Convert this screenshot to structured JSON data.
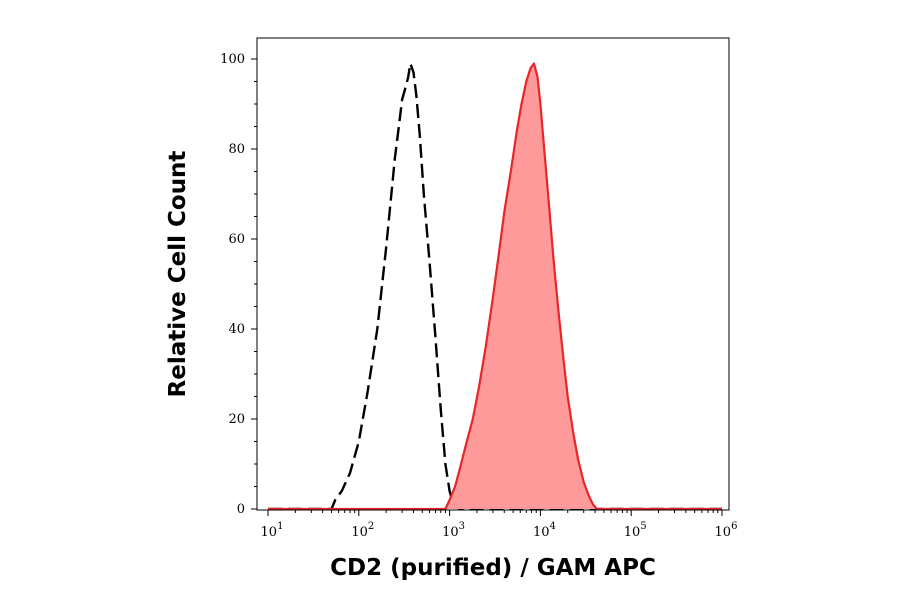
{
  "chart_data": {
    "type": "area",
    "xlabel": "CD2 (purified) / GAM APC",
    "ylabel": "Relative Cell Count",
    "x_scale": "log",
    "xlim": [
      10,
      1000000
    ],
    "ylim": [
      0,
      100
    ],
    "x_ticks": [
      {
        "base": "10",
        "exp": "1",
        "value": 10
      },
      {
        "base": "10",
        "exp": "2",
        "value": 100
      },
      {
        "base": "10",
        "exp": "3",
        "value": 1000
      },
      {
        "base": "10",
        "exp": "4",
        "value": 10000
      },
      {
        "base": "10",
        "exp": "5",
        "value": 100000
      },
      {
        "base": "10",
        "exp": "6",
        "value": 1000000
      }
    ],
    "y_ticks": [
      "0",
      "20",
      "40",
      "60",
      "80",
      "100"
    ],
    "grid": false,
    "series": [
      {
        "style": "dashed-line",
        "color": "#000000",
        "x": [
          10,
          40,
          50,
          55,
          65,
          80,
          100,
          125,
          160,
          200,
          250,
          280,
          300,
          320,
          350,
          370,
          400,
          430,
          470,
          520,
          600,
          700,
          800,
          900,
          1000,
          1100,
          1300,
          1000000
        ],
        "y": [
          0,
          0,
          0,
          2,
          4,
          8,
          15,
          26,
          40,
          58,
          78,
          86,
          91,
          93,
          96,
          99,
          97,
          92,
          83,
          70,
          55,
          38,
          22,
          10,
          4,
          1,
          0,
          0
        ]
      },
      {
        "style": "filled-area",
        "color": "#e8262a",
        "fill": "#ff9a9a",
        "x": [
          10,
          900,
          1000,
          1150,
          1300,
          1500,
          1800,
          2100,
          2500,
          3000,
          3500,
          4000,
          4800,
          5500,
          6200,
          7000,
          7800,
          8500,
          9300,
          10000,
          11000,
          12500,
          14000,
          16000,
          18000,
          20000,
          23000,
          26000,
          30000,
          34000,
          38000,
          42000,
          1000000
        ],
        "y": [
          0,
          0,
          2,
          5,
          9,
          14,
          20,
          27,
          36,
          47,
          57,
          66,
          76,
          84,
          90,
          95,
          98,
          99,
          96,
          90,
          80,
          67,
          55,
          43,
          33,
          25,
          17,
          11,
          6,
          3,
          1,
          0,
          0
        ]
      }
    ]
  }
}
